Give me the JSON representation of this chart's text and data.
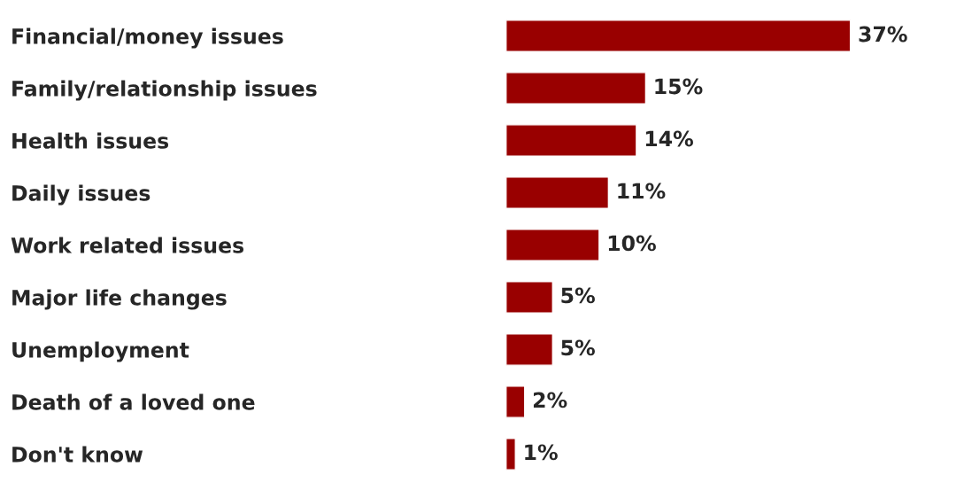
{
  "chart_data": {
    "type": "bar",
    "orientation": "horizontal",
    "categories": [
      "Financial/money issues",
      "Family/relationship issues",
      "Health issues",
      "Daily issues",
      "Work related issues",
      "Major life changes",
      "Unemployment",
      "Death of a loved one",
      "Don't know"
    ],
    "values": [
      37,
      15,
      14,
      11,
      10,
      5,
      5,
      2,
      1
    ],
    "value_labels": [
      "37%",
      "15%",
      "14%",
      "11%",
      "10%",
      "5%",
      "5%",
      "2%",
      "1%"
    ],
    "color": "#990000",
    "grid": false
  }
}
